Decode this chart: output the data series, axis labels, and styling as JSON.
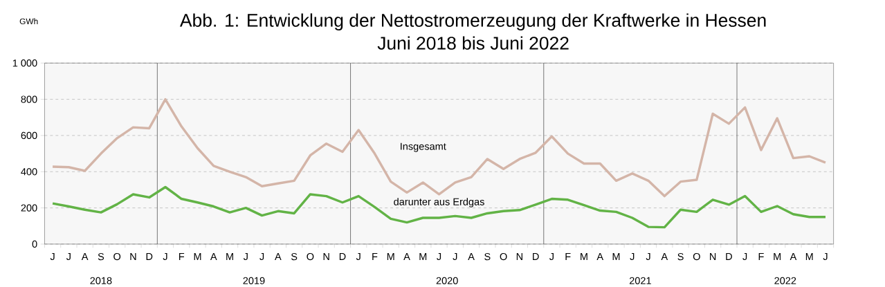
{
  "chart_data": {
    "type": "line",
    "title": "Abb. 1: Entwicklung der Nettostromerzeugung der Kraftwerke in Hessen\nJuni 2018 bis Juni 2022",
    "ylabel": "GWh",
    "categories": [
      "J",
      "J",
      "A",
      "S",
      "O",
      "N",
      "D",
      "J",
      "F",
      "M",
      "A",
      "M",
      "J",
      "J",
      "A",
      "S",
      "O",
      "N",
      "D",
      "J",
      "F",
      "M",
      "A",
      "M",
      "J",
      "J",
      "A",
      "S",
      "O",
      "N",
      "D",
      "J",
      "F",
      "M",
      "A",
      "M",
      "J",
      "J",
      "A",
      "S",
      "O",
      "N",
      "D",
      "J",
      "F",
      "M",
      "A",
      "M",
      "J"
    ],
    "series": [
      {
        "name": "Insgesamt",
        "color": "#d4b5a8",
        "values": [
          428,
          425,
          405,
          500,
          585,
          645,
          640,
          800,
          650,
          530,
          432,
          400,
          370,
          320,
          335,
          350,
          490,
          555,
          510,
          630,
          500,
          345,
          285,
          340,
          275,
          340,
          370,
          470,
          415,
          470,
          505,
          595,
          500,
          445,
          445,
          350,
          390,
          350,
          265,
          345,
          355,
          720,
          665,
          755,
          520,
          695,
          475,
          485,
          450
        ]
      },
      {
        "name": "darunter aus Erdgas",
        "color": "#62b346",
        "values": [
          225,
          208,
          190,
          175,
          220,
          275,
          258,
          315,
          250,
          230,
          208,
          175,
          200,
          158,
          182,
          170,
          275,
          265,
          230,
          265,
          205,
          140,
          120,
          145,
          145,
          155,
          145,
          170,
          182,
          188,
          218,
          250,
          245,
          215,
          185,
          178,
          145,
          95,
          93,
          190,
          178,
          245,
          218,
          265,
          178,
          210,
          165,
          150,
          150
        ]
      }
    ],
    "ylim": [
      0,
      1000
    ],
    "yticks": [
      0,
      200,
      400,
      600,
      800,
      {
        "value": 1000,
        "label": "1 000"
      }
    ],
    "annotations": [
      "2018",
      "2019",
      "2020",
      "2021",
      "2022"
    ],
    "grid": "y",
    "legend": false,
    "marker": "none",
    "line_style": "solid"
  }
}
